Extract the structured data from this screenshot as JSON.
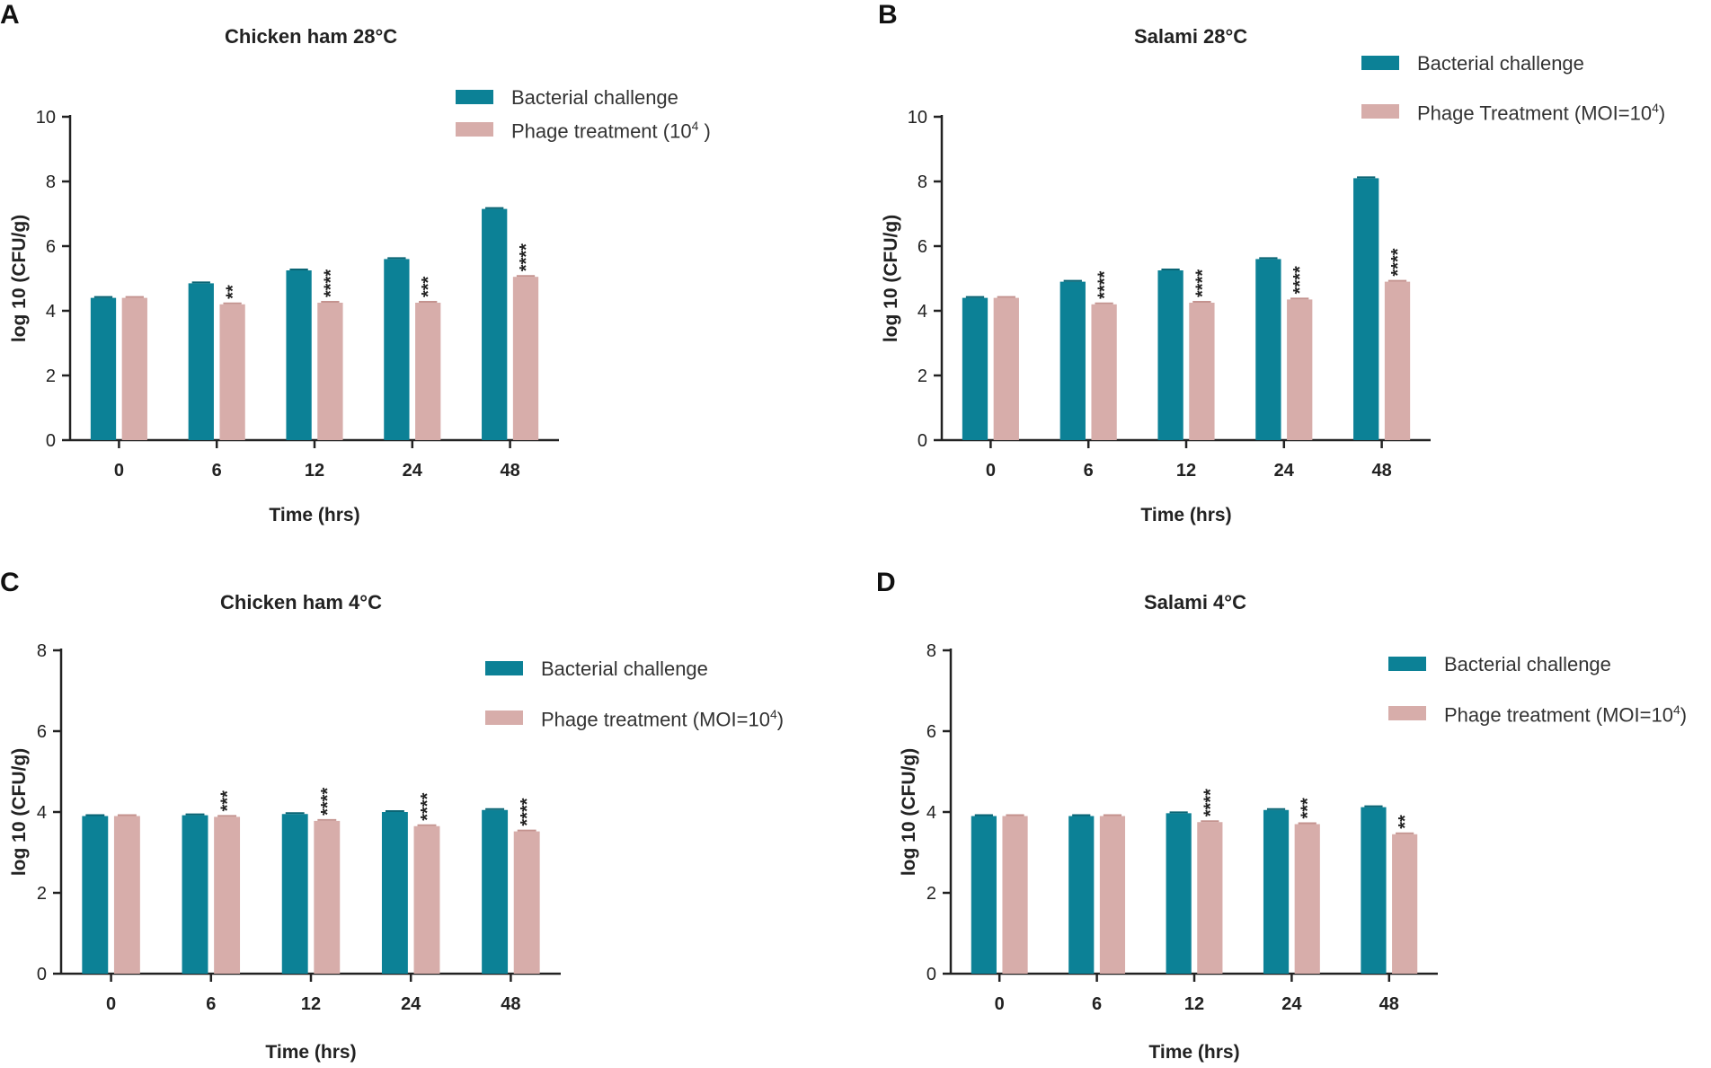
{
  "colors": {
    "bacterial": "#0c8196",
    "phage": "#d7adaa",
    "axis": "#222222"
  },
  "chart_data": [
    {
      "id": "A",
      "panel_label": "A",
      "type": "bar",
      "title": "Chicken ham 28°C",
      "xlabel": "Time (hrs)",
      "ylabel": "log 10 (CFU/g)",
      "ylim": [
        0,
        10
      ],
      "yticks": [
        0,
        2,
        4,
        6,
        8,
        10
      ],
      "categories": [
        "0",
        "6",
        "12",
        "24",
        "48"
      ],
      "legend": [
        "Bacterial challenge",
        "Phage treatment (10",
        "4",
        " )"
      ],
      "series": [
        {
          "name": "Bacterial challenge",
          "values": [
            4.4,
            4.85,
            5.25,
            5.6,
            7.15
          ]
        },
        {
          "name": "Phage treatment (10^4)",
          "values": [
            4.4,
            4.2,
            4.25,
            4.25,
            5.05
          ]
        }
      ],
      "significance": [
        "",
        "**",
        "****",
        "***",
        "****"
      ]
    },
    {
      "id": "B",
      "panel_label": "B",
      "type": "bar",
      "title": "Salami 28°C",
      "xlabel": "Time (hrs)",
      "ylabel": "log 10 (CFU/g)",
      "ylim": [
        0,
        10
      ],
      "yticks": [
        0,
        2,
        4,
        6,
        8,
        10
      ],
      "categories": [
        "0",
        "6",
        "12",
        "24",
        "48"
      ],
      "legend": [
        "Bacterial challenge",
        "Phage Treatment (MOI=10",
        "4",
        ")"
      ],
      "series": [
        {
          "name": "Bacterial challenge",
          "values": [
            4.4,
            4.9,
            5.25,
            5.6,
            8.1
          ]
        },
        {
          "name": "Phage Treatment (MOI=10^4)",
          "values": [
            4.4,
            4.2,
            4.25,
            4.35,
            4.9
          ]
        }
      ],
      "significance": [
        "",
        "****",
        "****",
        "****",
        "****"
      ]
    },
    {
      "id": "C",
      "panel_label": "C",
      "type": "bar",
      "title": "Chicken ham 4°C",
      "xlabel": "Time (hrs)",
      "ylabel": "log 10 (CFU/g)",
      "ylim": [
        0,
        8
      ],
      "yticks": [
        0,
        2,
        4,
        6,
        8
      ],
      "categories": [
        "0",
        "6",
        "12",
        "24",
        "48"
      ],
      "legend": [
        "Bacterial challenge",
        "Phage treatment (MOI=10",
        "4",
        ")"
      ],
      "series": [
        {
          "name": "Bacterial challenge",
          "values": [
            3.9,
            3.92,
            3.95,
            4.0,
            4.05
          ]
        },
        {
          "name": "Phage treatment (MOI=10^4)",
          "values": [
            3.9,
            3.88,
            3.78,
            3.65,
            3.52
          ]
        }
      ],
      "significance": [
        "",
        "***",
        "****",
        "****",
        "****"
      ]
    },
    {
      "id": "D",
      "panel_label": "D",
      "type": "bar",
      "title": "Salami 4°C",
      "xlabel": "Time (hrs)",
      "ylabel": "log 10 (CFU/g)",
      "ylim": [
        0,
        8
      ],
      "yticks": [
        0,
        2,
        4,
        6,
        8
      ],
      "categories": [
        "0",
        "6",
        "12",
        "24",
        "48"
      ],
      "legend": [
        "Bacterial challenge",
        "Phage treatment (MOI=10",
        "4",
        ")"
      ],
      "series": [
        {
          "name": "Bacterial challenge",
          "values": [
            3.9,
            3.9,
            3.97,
            4.05,
            4.12
          ]
        },
        {
          "name": "Phage treatment (MOI=10^4)",
          "values": [
            3.9,
            3.9,
            3.75,
            3.7,
            3.45
          ]
        }
      ],
      "significance": [
        "",
        "",
        "****",
        "***",
        "**"
      ]
    }
  ]
}
